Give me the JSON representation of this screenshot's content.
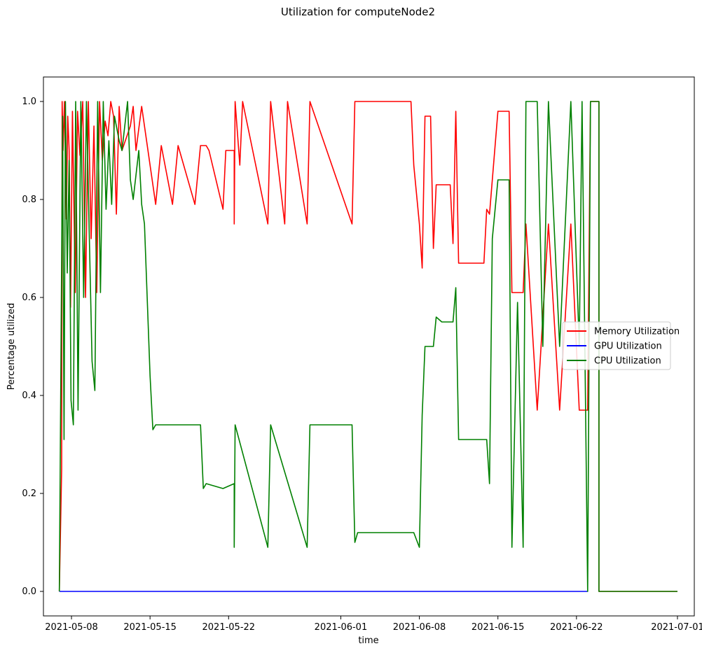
{
  "chart_data": {
    "type": "line",
    "title": "Utilization for computeNode2",
    "xlabel": "time",
    "ylabel": "Percentage utilized",
    "xlim": [
      "2021-05-05T12:00",
      "2021-07-02T12:00"
    ],
    "ylim": [
      -0.05,
      1.05
    ],
    "x_ticks": [
      "2021-05-08",
      "2021-05-15",
      "2021-05-22",
      "2021-06-01",
      "2021-06-08",
      "2021-06-15",
      "2021-06-22",
      "2021-07-01"
    ],
    "y_ticks": [
      "0.0",
      "0.2",
      "0.4",
      "0.6",
      "0.8",
      "1.0"
    ],
    "grid": false,
    "legend_position": "center-right",
    "series": [
      {
        "name": "Memory Utilization",
        "color": "#ff0000",
        "points": [
          [
            "2021-05-06T22:00",
            0.0
          ],
          [
            "2021-05-07T03:00",
            0.25
          ],
          [
            "2021-05-07T04:00",
            1.0
          ],
          [
            "2021-05-07T06:00",
            0.9
          ],
          [
            "2021-05-07T09:00",
            1.0
          ],
          [
            "2021-05-07T13:00",
            0.76
          ],
          [
            "2021-05-07T16:00",
            0.97
          ],
          [
            "2021-05-07T19:00",
            0.9
          ],
          [
            "2021-05-07T22:00",
            0.58
          ],
          [
            "2021-05-08T02:00",
            0.98
          ],
          [
            "2021-05-08T08:00",
            0.61
          ],
          [
            "2021-05-08T13:00",
            0.98
          ],
          [
            "2021-05-08T18:00",
            0.89
          ],
          [
            "2021-05-09T00:00",
            1.0
          ],
          [
            "2021-05-09T06:00",
            0.6
          ],
          [
            "2021-05-09T12:00",
            1.0
          ],
          [
            "2021-05-09T18:00",
            0.72
          ],
          [
            "2021-05-10T00:00",
            0.95
          ],
          [
            "2021-05-10T06:00",
            0.61
          ],
          [
            "2021-05-10T12:00",
            1.0
          ],
          [
            "2021-05-10T18:00",
            0.88
          ],
          [
            "2021-05-11T00:00",
            0.96
          ],
          [
            "2021-05-11T06:00",
            0.93
          ],
          [
            "2021-05-11T12:00",
            1.0
          ],
          [
            "2021-05-11T18:00",
            0.97
          ],
          [
            "2021-05-12T00:00",
            0.77
          ],
          [
            "2021-05-12T06:00",
            0.99
          ],
          [
            "2021-05-12T12:00",
            0.9
          ],
          [
            "2021-05-13T06:00",
            0.95
          ],
          [
            "2021-05-13T12:00",
            0.99
          ],
          [
            "2021-05-13T18:00",
            0.9
          ],
          [
            "2021-05-14T06:00",
            0.99
          ],
          [
            "2021-05-14T18:00",
            0.91
          ],
          [
            "2021-05-15T12:00",
            0.79
          ],
          [
            "2021-05-16T00:00",
            0.91
          ],
          [
            "2021-05-17T00:00",
            0.79
          ],
          [
            "2021-05-17T12:00",
            0.91
          ],
          [
            "2021-05-19T00:00",
            0.79
          ],
          [
            "2021-05-19T12:00",
            0.91
          ],
          [
            "2021-05-20T00:00",
            0.91
          ],
          [
            "2021-05-20T06:00",
            0.9
          ],
          [
            "2021-05-21T12:00",
            0.78
          ],
          [
            "2021-05-21T18:00",
            0.9
          ],
          [
            "2021-05-22T12:00",
            0.9
          ],
          [
            "2021-05-22T12:01",
            0.75
          ],
          [
            "2021-05-22T14:00",
            1.0
          ],
          [
            "2021-05-23T00:00",
            0.87
          ],
          [
            "2021-05-23T06:00",
            1.0
          ],
          [
            "2021-05-25T12:00",
            0.75
          ],
          [
            "2021-05-25T18:00",
            1.0
          ],
          [
            "2021-05-27T00:00",
            0.75
          ],
          [
            "2021-05-27T06:00",
            1.0
          ],
          [
            "2021-05-29T00:00",
            0.75
          ],
          [
            "2021-05-29T06:00",
            1.0
          ],
          [
            "2021-06-02T00:00",
            0.75
          ],
          [
            "2021-06-02T06:00",
            1.0
          ],
          [
            "2021-06-07T06:00",
            1.0
          ],
          [
            "2021-06-07T12:00",
            0.87
          ],
          [
            "2021-06-08T00:00",
            0.75
          ],
          [
            "2021-06-08T06:00",
            0.66
          ],
          [
            "2021-06-08T12:00",
            0.97
          ],
          [
            "2021-06-09T00:00",
            0.97
          ],
          [
            "2021-06-09T06:00",
            0.7
          ],
          [
            "2021-06-09T12:00",
            0.83
          ],
          [
            "2021-06-10T18:00",
            0.83
          ],
          [
            "2021-06-11T00:00",
            0.71
          ],
          [
            "2021-06-11T06:00",
            0.98
          ],
          [
            "2021-06-11T12:00",
            0.67
          ],
          [
            "2021-06-13T18:00",
            0.67
          ],
          [
            "2021-06-14T00:00",
            0.78
          ],
          [
            "2021-06-14T06:00",
            0.77
          ],
          [
            "2021-06-15T00:00",
            0.98
          ],
          [
            "2021-06-16T00:00",
            0.98
          ],
          [
            "2021-06-16T06:00",
            0.61
          ],
          [
            "2021-06-17T06:00",
            0.61
          ],
          [
            "2021-06-17T12:00",
            0.75
          ],
          [
            "2021-06-18T12:00",
            0.37
          ],
          [
            "2021-06-19T12:00",
            0.75
          ],
          [
            "2021-06-20T12:00",
            0.37
          ],
          [
            "2021-06-21T12:00",
            0.75
          ],
          [
            "2021-06-22T06:00",
            0.37
          ],
          [
            "2021-06-23T00:00",
            0.37
          ],
          [
            "2021-06-23T06:00",
            1.0
          ],
          [
            "2021-06-24T00:00",
            1.0
          ],
          [
            "2021-06-24T00:01",
            0.0
          ],
          [
            "2021-07-01T00:00",
            0.0
          ]
        ]
      },
      {
        "name": "GPU Utilization",
        "color": "#0000ff",
        "points": [
          [
            "2021-05-06T22:00",
            0.0
          ],
          [
            "2021-06-23T00:00",
            0.0
          ]
        ]
      },
      {
        "name": "CPU Utilization",
        "color": "#008000",
        "points": [
          [
            "2021-05-06T22:00",
            0.0
          ],
          [
            "2021-05-07T05:00",
            0.97
          ],
          [
            "2021-05-07T08:00",
            0.31
          ],
          [
            "2021-05-07T11:00",
            1.0
          ],
          [
            "2021-05-07T15:00",
            0.65
          ],
          [
            "2021-05-07T19:00",
            0.88
          ],
          [
            "2021-05-07T23:00",
            0.39
          ],
          [
            "2021-05-08T04:00",
            0.34
          ],
          [
            "2021-05-08T09:00",
            1.0
          ],
          [
            "2021-05-08T14:00",
            0.37
          ],
          [
            "2021-05-08T20:00",
            1.0
          ],
          [
            "2021-05-09T02:00",
            0.6
          ],
          [
            "2021-05-09T08:00",
            1.0
          ],
          [
            "2021-05-09T14:00",
            0.73
          ],
          [
            "2021-05-09T20:00",
            0.47
          ],
          [
            "2021-05-10T02:00",
            0.41
          ],
          [
            "2021-05-10T08:00",
            1.0
          ],
          [
            "2021-05-10T14:00",
            0.61
          ],
          [
            "2021-05-10T20:00",
            1.0
          ],
          [
            "2021-05-11T02:00",
            0.78
          ],
          [
            "2021-05-11T08:00",
            0.92
          ],
          [
            "2021-05-11T14:00",
            0.79
          ],
          [
            "2021-05-11T20:00",
            0.97
          ],
          [
            "2021-05-12T06:00",
            0.92
          ],
          [
            "2021-05-12T12:00",
            0.9
          ],
          [
            "2021-05-13T00:00",
            1.0
          ],
          [
            "2021-05-13T06:00",
            0.84
          ],
          [
            "2021-05-13T12:00",
            0.8
          ],
          [
            "2021-05-14T00:00",
            0.9
          ],
          [
            "2021-05-14T06:00",
            0.79
          ],
          [
            "2021-05-14T12:00",
            0.75
          ],
          [
            "2021-05-15T00:00",
            0.44
          ],
          [
            "2021-05-15T06:00",
            0.33
          ],
          [
            "2021-05-15T12:00",
            0.34
          ],
          [
            "2021-05-19T12:00",
            0.34
          ],
          [
            "2021-05-19T18:00",
            0.21
          ],
          [
            "2021-05-20T00:00",
            0.22
          ],
          [
            "2021-05-21T12:00",
            0.21
          ],
          [
            "2021-05-22T12:00",
            0.22
          ],
          [
            "2021-05-22T12:01",
            0.09
          ],
          [
            "2021-05-22T14:00",
            0.34
          ],
          [
            "2021-05-25T12:00",
            0.09
          ],
          [
            "2021-05-25T18:00",
            0.34
          ],
          [
            "2021-05-29T00:00",
            0.09
          ],
          [
            "2021-05-29T06:00",
            0.34
          ],
          [
            "2021-06-02T00:00",
            0.34
          ],
          [
            "2021-06-02T06:00",
            0.1
          ],
          [
            "2021-06-02T12:00",
            0.12
          ],
          [
            "2021-06-07T12:00",
            0.12
          ],
          [
            "2021-06-08T00:00",
            0.09
          ],
          [
            "2021-06-08T06:00",
            0.36
          ],
          [
            "2021-06-08T12:00",
            0.5
          ],
          [
            "2021-06-09T06:00",
            0.5
          ],
          [
            "2021-06-09T12:00",
            0.56
          ],
          [
            "2021-06-10T00:00",
            0.55
          ],
          [
            "2021-06-11T00:00",
            0.55
          ],
          [
            "2021-06-11T06:00",
            0.62
          ],
          [
            "2021-06-11T12:00",
            0.31
          ],
          [
            "2021-06-14T00:00",
            0.31
          ],
          [
            "2021-06-14T06:00",
            0.22
          ],
          [
            "2021-06-14T12:00",
            0.72
          ],
          [
            "2021-06-15T00:00",
            0.84
          ],
          [
            "2021-06-16T00:00",
            0.84
          ],
          [
            "2021-06-16T06:00",
            0.09
          ],
          [
            "2021-06-16T18:00",
            0.59
          ],
          [
            "2021-06-17T06:00",
            0.09
          ],
          [
            "2021-06-17T12:00",
            1.0
          ],
          [
            "2021-06-18T12:00",
            1.0
          ],
          [
            "2021-06-19T00:00",
            0.5
          ],
          [
            "2021-06-19T12:00",
            1.0
          ],
          [
            "2021-06-20T12:00",
            0.5
          ],
          [
            "2021-06-21T12:00",
            1.0
          ],
          [
            "2021-06-22T06:00",
            0.5
          ],
          [
            "2021-06-22T12:00",
            1.0
          ],
          [
            "2021-06-23T00:00",
            0.0
          ],
          [
            "2021-06-23T06:00",
            1.0
          ],
          [
            "2021-06-24T00:00",
            1.0
          ],
          [
            "2021-06-24T00:01",
            0.0
          ],
          [
            "2021-07-01T00:00",
            0.0
          ]
        ]
      }
    ]
  }
}
